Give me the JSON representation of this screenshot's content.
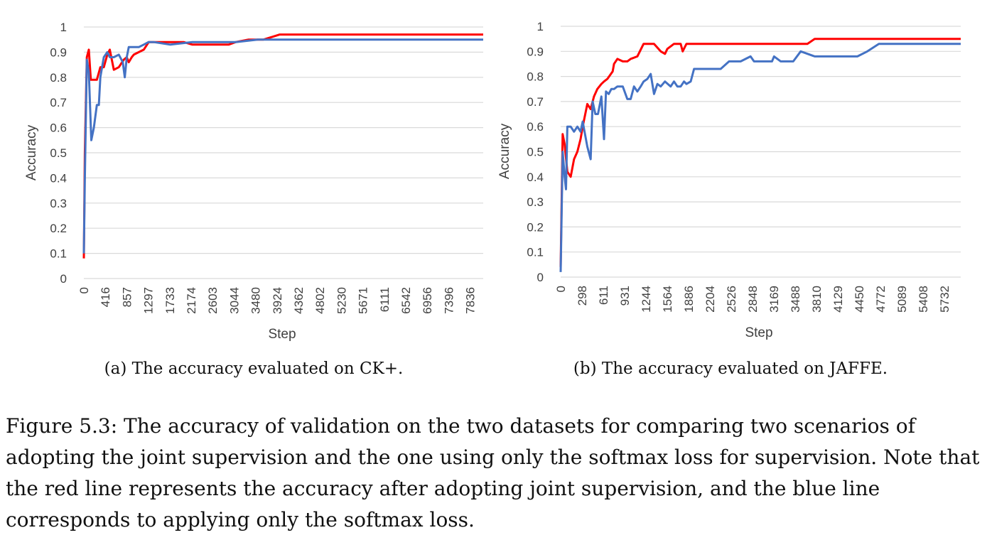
{
  "chart_data": [
    {
      "type": "line",
      "subcaption": "(a) The accuracy evaluated on CK+.",
      "xlabel": "Step",
      "ylabel": "Accuracy",
      "ylim": [
        0,
        1
      ],
      "yticks": [
        "0",
        "0.1",
        "0.2",
        "0.3",
        "0.4",
        "0.5",
        "0.6",
        "0.7",
        "0.8",
        "0.9",
        "1"
      ],
      "xticks": [
        "0",
        "416",
        "857",
        "1297",
        "1733",
        "2174",
        "2603",
        "3044",
        "3480",
        "3924",
        "4362",
        "4802",
        "5230",
        "5671",
        "6111",
        "6542",
        "6956",
        "7396",
        "7836"
      ],
      "grid": "horizontal",
      "series": [
        {
          "color": "#ff0000",
          "x": [
            0,
            20,
            60,
            100,
            140,
            200,
            260,
            330,
            400,
            470,
            520,
            600,
            700,
            800,
            860,
            900,
            960,
            1000,
            1100,
            1200,
            1300,
            1400,
            1500,
            1733,
            2000,
            2174,
            2300,
            2600,
            2900,
            3044,
            3300,
            3600,
            3924,
            4500,
            5000,
            6000,
            7000,
            7836,
            8000
          ],
          "y": [
            0.08,
            0.5,
            0.88,
            0.91,
            0.79,
            0.79,
            0.79,
            0.84,
            0.84,
            0.89,
            0.91,
            0.83,
            0.84,
            0.87,
            0.88,
            0.86,
            0.88,
            0.89,
            0.9,
            0.91,
            0.94,
            0.94,
            0.94,
            0.94,
            0.94,
            0.93,
            0.93,
            0.93,
            0.93,
            0.94,
            0.95,
            0.95,
            0.97,
            0.97,
            0.97,
            0.97,
            0.97,
            0.97,
            0.97
          ]
        },
        {
          "color": "#4472c4",
          "x": [
            0,
            20,
            60,
            100,
            150,
            200,
            260,
            300,
            330,
            400,
            470,
            520,
            600,
            700,
            780,
            820,
            860,
            900,
            1000,
            1100,
            1200,
            1297,
            1400,
            1733,
            2174,
            2600,
            3044,
            3480,
            3924,
            4500,
            5000,
            6000,
            7000,
            7836,
            8000
          ],
          "y": [
            0.1,
            0.4,
            0.87,
            0.82,
            0.55,
            0.6,
            0.69,
            0.69,
            0.8,
            0.88,
            0.9,
            0.88,
            0.88,
            0.89,
            0.86,
            0.8,
            0.88,
            0.92,
            0.92,
            0.92,
            0.93,
            0.94,
            0.94,
            0.93,
            0.94,
            0.94,
            0.94,
            0.95,
            0.95,
            0.95,
            0.95,
            0.95,
            0.95,
            0.95,
            0.95
          ]
        }
      ]
    },
    {
      "type": "line",
      "subcaption": "(b) The accuracy evaluated on JAFFE.",
      "xlabel": "Step",
      "ylabel": "Accuracy",
      "ylim": [
        0,
        1
      ],
      "yticks": [
        "0",
        "0.1",
        "0.2",
        "0.3",
        "0.4",
        "0.5",
        "0.6",
        "0.7",
        "0.8",
        "0.9",
        "1"
      ],
      "xticks": [
        "0",
        "298",
        "611",
        "931",
        "1244",
        "1564",
        "1886",
        "2204",
        "2526",
        "2848",
        "3169",
        "3488",
        "3810",
        "4129",
        "4450",
        "4772",
        "5089",
        "5408",
        "5732"
      ],
      "grid": "horizontal",
      "series": [
        {
          "color": "#ff0000",
          "x": [
            0,
            30,
            60,
            100,
            150,
            200,
            250,
            298,
            330,
            400,
            450,
            500,
            550,
            611,
            650,
            700,
            780,
            800,
            850,
            931,
            1000,
            1050,
            1150,
            1244,
            1300,
            1400,
            1500,
            1564,
            1600,
            1700,
            1800,
            1830,
            1886,
            2000,
            2500,
            3000,
            3488,
            3700,
            3810,
            4200,
            4772,
            5000,
            5500,
            6000
          ],
          "y": [
            0.04,
            0.57,
            0.53,
            0.42,
            0.4,
            0.47,
            0.5,
            0.55,
            0.6,
            0.69,
            0.67,
            0.72,
            0.75,
            0.77,
            0.78,
            0.79,
            0.82,
            0.85,
            0.87,
            0.86,
            0.86,
            0.87,
            0.88,
            0.93,
            0.93,
            0.93,
            0.9,
            0.89,
            0.91,
            0.93,
            0.93,
            0.9,
            0.93,
            0.93,
            0.93,
            0.93,
            0.93,
            0.93,
            0.95,
            0.95,
            0.95,
            0.95,
            0.95,
            0.95
          ]
        },
        {
          "color": "#4472c4",
          "x": [
            0,
            30,
            60,
            80,
            100,
            150,
            200,
            250,
            298,
            330,
            400,
            450,
            480,
            520,
            560,
            611,
            650,
            680,
            720,
            760,
            800,
            850,
            931,
            1000,
            1050,
            1100,
            1150,
            1200,
            1244,
            1300,
            1350,
            1400,
            1450,
            1500,
            1564,
            1650,
            1700,
            1750,
            1800,
            1850,
            1886,
            1950,
            2000,
            2204,
            2400,
            2526,
            2700,
            2848,
            2900,
            3000,
            3169,
            3200,
            3300,
            3488,
            3600,
            3810,
            4129,
            4450,
            4600,
            4772,
            5000,
            5408,
            6000
          ],
          "y": [
            0.02,
            0.5,
            0.4,
            0.35,
            0.6,
            0.6,
            0.58,
            0.6,
            0.58,
            0.62,
            0.52,
            0.47,
            0.7,
            0.65,
            0.65,
            0.72,
            0.55,
            0.74,
            0.73,
            0.75,
            0.75,
            0.76,
            0.76,
            0.71,
            0.71,
            0.76,
            0.74,
            0.76,
            0.78,
            0.79,
            0.81,
            0.73,
            0.77,
            0.76,
            0.78,
            0.76,
            0.78,
            0.76,
            0.76,
            0.78,
            0.77,
            0.78,
            0.83,
            0.83,
            0.83,
            0.86,
            0.86,
            0.88,
            0.86,
            0.86,
            0.86,
            0.88,
            0.86,
            0.86,
            0.9,
            0.88,
            0.88,
            0.88,
            0.9,
            0.93,
            0.93,
            0.93,
            0.93
          ]
        }
      ]
    }
  ],
  "figure_caption": "Figure 5.3: The accuracy of validation on the two datasets for comparing two scenarios of adopting the joint supervision and the one using only the softmax loss for supervision. Note that the red line represents the accuracy after adopting joint supervision, and the blue line corresponds to applying only the softmax loss."
}
